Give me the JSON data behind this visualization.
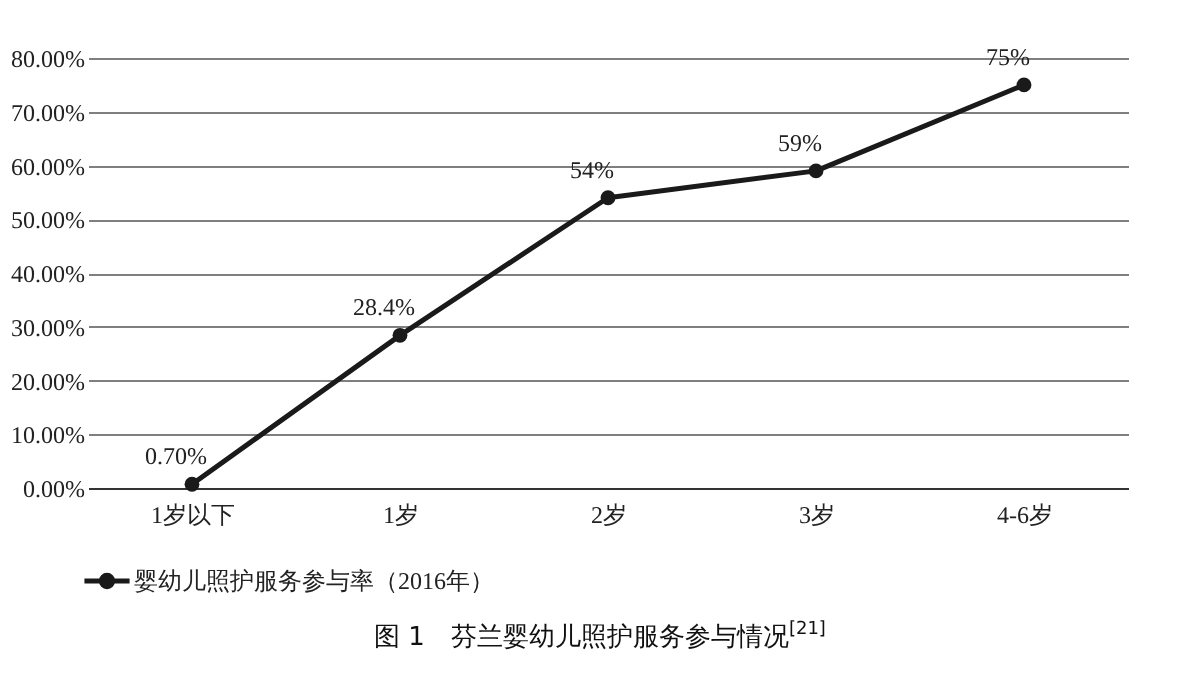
{
  "chart_data": {
    "type": "line",
    "categories": [
      "1岁以下",
      "1岁",
      "2岁",
      "3岁",
      "4-6岁"
    ],
    "series": [
      {
        "name": "婴幼儿照护服务参与率（2016年）",
        "color": "#1a1a1a",
        "values": [
          0.7,
          28.4,
          54,
          59,
          75
        ],
        "value_labels": [
          "0.70%",
          "28.4%",
          "54%",
          "59%",
          "75%"
        ]
      }
    ],
    "ylim": [
      0,
      80
    ],
    "yticks": [
      {
        "value": 0,
        "label": "0.00%"
      },
      {
        "value": 10,
        "label": "10.00%"
      },
      {
        "value": 20,
        "label": "20.00%"
      },
      {
        "value": 30,
        "label": "30.00%"
      },
      {
        "value": 40,
        "label": "40.00%"
      },
      {
        "value": 50,
        "label": "50.00%"
      },
      {
        "value": 60,
        "label": "60.00%"
      },
      {
        "value": 70,
        "label": "70.00%"
      },
      {
        "value": 80,
        "label": "80.00%"
      }
    ],
    "grid": "y",
    "legend": "bottom",
    "marker": "circle",
    "line_style": "solid",
    "annotations": [
      "图 1　芬兰婴幼儿照护服务参与情况$^{[21]}$"
    ]
  }
}
